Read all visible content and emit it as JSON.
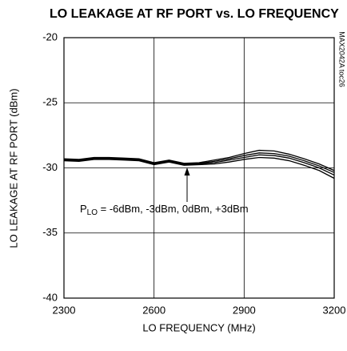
{
  "chart_data": {
    "type": "line",
    "title": "LO LEAKAGE AT RF PORT vs. LO FREQUENCY",
    "side_label": "MAX2042A toc26",
    "xlabel": "LO FREQUENCY (MHz)",
    "ylabel": "LO LEAKAGE AT RF PORT (dBm)",
    "annotation": {
      "prefix": "P",
      "subscript": "LO",
      "text": " =  -6dBm, -3dBm, 0dBm, +3dBm"
    },
    "x": [
      2300,
      2350,
      2400,
      2450,
      2500,
      2550,
      2600,
      2650,
      2700,
      2750,
      2800,
      2850,
      2900,
      2950,
      3000,
      3050,
      3100,
      3150,
      3200
    ],
    "series": [
      {
        "color": "#000000",
        "values": [
          -29.3,
          -29.35,
          -29.2,
          -29.2,
          -29.25,
          -29.3,
          -29.6,
          -29.4,
          -29.65,
          -29.6,
          -29.4,
          -29.2,
          -28.9,
          -28.65,
          -28.7,
          -28.95,
          -29.3,
          -29.7,
          -30.2
        ]
      },
      {
        "color": "#000000",
        "values": [
          -29.35,
          -29.4,
          -29.25,
          -29.25,
          -29.3,
          -29.35,
          -29.65,
          -29.45,
          -29.7,
          -29.65,
          -29.5,
          -29.3,
          -29.05,
          -28.85,
          -28.9,
          -29.1,
          -29.45,
          -29.85,
          -30.35
        ]
      },
      {
        "color": "#000000",
        "values": [
          -29.4,
          -29.45,
          -29.3,
          -29.3,
          -29.35,
          -29.4,
          -29.7,
          -29.5,
          -29.75,
          -29.7,
          -29.6,
          -29.4,
          -29.2,
          -29.0,
          -29.05,
          -29.25,
          -29.6,
          -30.0,
          -30.55
        ]
      },
      {
        "color": "#000000",
        "values": [
          -29.45,
          -29.5,
          -29.35,
          -29.35,
          -29.4,
          -29.45,
          -29.75,
          -29.55,
          -29.8,
          -29.75,
          -29.7,
          -29.55,
          -29.35,
          -29.2,
          -29.25,
          -29.45,
          -29.8,
          -30.2,
          -30.8
        ]
      }
    ],
    "xlim": [
      2300,
      3200
    ],
    "xticks": [
      2300,
      2600,
      2900,
      3200
    ],
    "ylim": [
      -40,
      -20
    ],
    "yticks": [
      -40,
      -35,
      -30,
      -25,
      -20
    ],
    "grid": true
  }
}
